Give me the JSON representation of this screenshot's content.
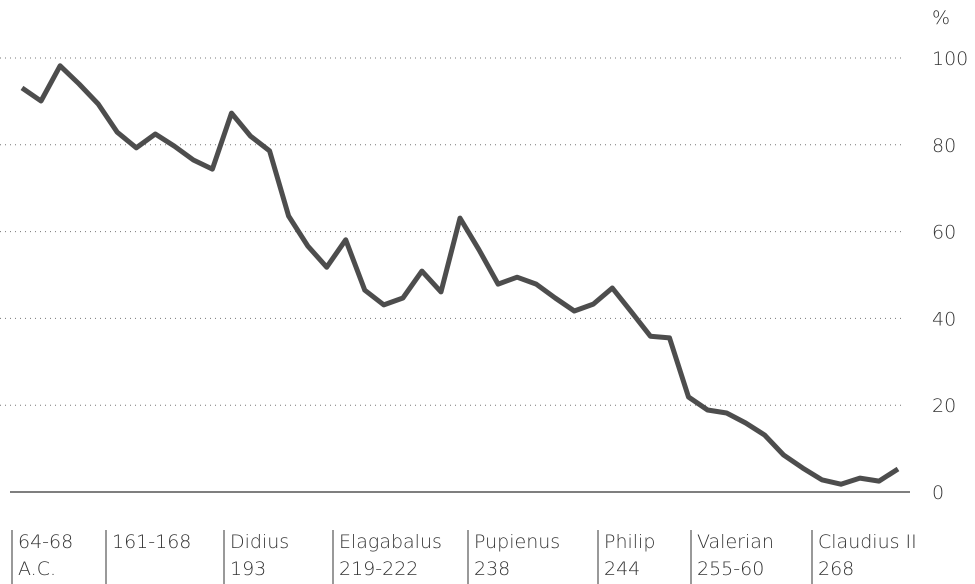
{
  "chart_data": {
    "type": "line",
    "unit_label": "%",
    "values": [
      93.1,
      90.1,
      98.2,
      94.0,
      89.4,
      82.9,
      79.3,
      82.5,
      79.7,
      76.5,
      74.4,
      87.3,
      82.0,
      78.6,
      63.6,
      56.7,
      51.8,
      58.1,
      46.5,
      43.1,
      44.7,
      50.9,
      46.1,
      63.1,
      55.8,
      47.9,
      49.5,
      47.9,
      44.7,
      41.7,
      43.3,
      47.0,
      41.5,
      35.9,
      35.5,
      21.9,
      18.9,
      18.2,
      15.9,
      13.1,
      8.5,
      5.5,
      2.8,
      1.8,
      3.2,
      2.5,
      5.3
    ],
    "color": "#4d4d4d",
    "x_labels": [
      [
        "64-68",
        "A.C."
      ],
      [
        "161-168"
      ],
      [
        "Didius",
        "193"
      ],
      [
        "Elagabalus",
        "219-222"
      ],
      [
        "Pupienus",
        "238"
      ],
      [
        "Philip",
        "244"
      ],
      [
        "Valerian",
        "255-60"
      ],
      [
        "Claudius II",
        "268"
      ]
    ],
    "ylim": [
      0,
      100
    ],
    "yticks": [
      0,
      20,
      40,
      60,
      80,
      100
    ],
    "grid": true
  }
}
